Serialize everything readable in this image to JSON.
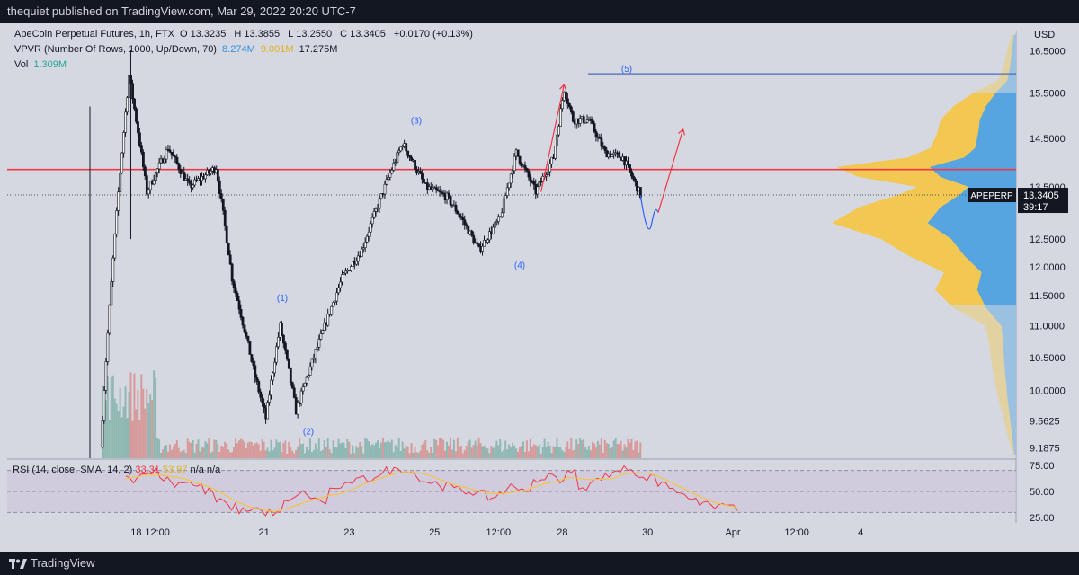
{
  "header": {
    "published_by": "thequiet published on TradingView.com, Mar 29, 2022 20:20 UTC-7"
  },
  "legend": {
    "symbol_line": "ApeCoin Perpetual Futures, 1h, FTX",
    "open_label": "O",
    "open": "13.3235",
    "high_label": "H",
    "high": "13.3855",
    "low_label": "L",
    "low": "13.2550",
    "close_label": "C",
    "close": "13.3405",
    "change": "+0.0170 (+0.13%)",
    "vpvr_label": "VPVR (Number Of Rows, 1000, Up/Down, 70)",
    "vpvr_up": "8.274M",
    "vpvr_down": "9.001M",
    "vpvr_total": "17.275M",
    "vol_label": "Vol",
    "vol_value": "1.309M"
  },
  "rsi_legend": {
    "label": "RSI (14, close, SMA, 14, 2)",
    "rsi_value": "33.31",
    "sma_value": "53.97",
    "na1": "n/a",
    "na2": "n/a"
  },
  "price_axis": {
    "currency": "USD",
    "ticks": [
      "16.5000",
      "15.5000",
      "14.5000",
      "13.5000",
      "12.5000",
      "12.0000",
      "11.5000",
      "11.0000",
      "10.5000",
      "10.0000",
      "9.5625",
      "9.1875"
    ],
    "last_symbol": "APEPERP",
    "last_price": "13.3405",
    "countdown": "39:17"
  },
  "rsi_axis": {
    "ticks": [
      "75.00",
      "50.00",
      "25.00"
    ]
  },
  "time_axis": {
    "ticks": [
      "18",
      "12:00",
      "21",
      "23",
      "25",
      "12:00",
      "28",
      "30",
      "Apr",
      "12:00",
      "4"
    ]
  },
  "wave_labels": [
    "(1)",
    "(2)",
    "(3)",
    "(4)",
    "(5)"
  ],
  "footer": {
    "brand": "TradingView"
  },
  "colors": {
    "background": "#d6d8e1",
    "candle": "#131722",
    "red_line": "#f23645",
    "wave_label": "#2962ff",
    "rsi_line": "#f23645",
    "rsi_sma": "#f5c542",
    "vp_up": "#4da3e8",
    "vp_down": "#f5c542",
    "volume_up": "#8fb8b2",
    "volume_down": "#d69a9a"
  },
  "chart_data": {
    "type": "candlestick",
    "instrument": "ApeCoin Perpetual Futures",
    "interval": "1h",
    "y_range": [
      9.05,
      17.0
    ],
    "scale": "log",
    "horizontal_levels": [
      {
        "name": "resistance",
        "price": 13.85,
        "color": "#f23645"
      },
      {
        "name": "wave-5-top",
        "price": 15.95,
        "color": "#4a6bb5"
      },
      {
        "name": "last-price",
        "price": 13.3405,
        "color": "#555"
      }
    ],
    "wave_points": [
      {
        "label": "(1)",
        "price": 11.2
      },
      {
        "label": "(2)",
        "price": 9.55
      },
      {
        "label": "(3)",
        "price": 14.55
      },
      {
        "label": "(4)",
        "price": 12.2
      },
      {
        "label": "(5)",
        "price": 15.7
      }
    ],
    "path_keypoints": [
      {
        "time": "Mar 17 04:00",
        "price": 9.2
      },
      {
        "time": "Mar 17 20:00",
        "price": 15.9
      },
      {
        "time": "Mar 18 06:00",
        "price": 13.4
      },
      {
        "time": "Mar 18 18:00",
        "price": 14.3
      },
      {
        "time": "Mar 19 06:00",
        "price": 13.5
      },
      {
        "time": "Mar 19 21:00",
        "price": 13.9
      },
      {
        "time": "Mar 20 06:00",
        "price": 11.8
      },
      {
        "time": "Mar 20 19:00",
        "price": 10.2
      },
      {
        "time": "Mar 21 01:00",
        "price": 9.6
      },
      {
        "time": "Mar 21 09:00",
        "price": 11.0
      },
      {
        "time": "Mar 21 18:00",
        "price": 9.7
      },
      {
        "time": "Mar 22 09:00",
        "price": 10.9
      },
      {
        "time": "Mar 22 20:00",
        "price": 11.8
      },
      {
        "time": "Mar 23 07:00",
        "price": 12.3
      },
      {
        "time": "Mar 23 20:00",
        "price": 13.5
      },
      {
        "time": "Mar 24 06:00",
        "price": 14.4
      },
      {
        "time": "Mar 24 19:00",
        "price": 13.5
      },
      {
        "time": "Mar 25 07:00",
        "price": 13.3
      },
      {
        "time": "Mar 25 15:00",
        "price": 12.9
      },
      {
        "time": "Mar 26 01:00",
        "price": 12.3
      },
      {
        "time": "Mar 26 13:00",
        "price": 12.9
      },
      {
        "time": "Mar 26 22:00",
        "price": 14.2
      },
      {
        "time": "Mar 27 09:00",
        "price": 13.4
      },
      {
        "time": "Mar 27 19:00",
        "price": 14.1
      },
      {
        "time": "Mar 28 01:00",
        "price": 15.6
      },
      {
        "time": "Mar 28 06:00",
        "price": 14.9
      },
      {
        "time": "Mar 28 15:00",
        "price": 14.9
      },
      {
        "time": "Mar 29 00:00",
        "price": 14.2
      },
      {
        "time": "Mar 29 10:00",
        "price": 14.1
      },
      {
        "time": "Mar 29 20:00",
        "price": 13.34
      }
    ],
    "forecast_path": [
      {
        "time": "Mar 29 20:00",
        "price": 13.34
      },
      {
        "time": "Mar 30 02:00",
        "price": 12.75
      },
      {
        "time": "Mar 30 06:00",
        "price": 13.0
      },
      {
        "time": "Mar 30 20:00",
        "price": 14.7
      }
    ],
    "rsi": {
      "y_range": [
        20,
        80
      ],
      "bands": [
        30,
        70
      ],
      "values": [
        62,
        66,
        70,
        63,
        58,
        60,
        55,
        50,
        40,
        35,
        32,
        34,
        30,
        28,
        40,
        48,
        45,
        40,
        52,
        55,
        60,
        62,
        66,
        70,
        72,
        68,
        60,
        58,
        55,
        52,
        50,
        47,
        44,
        50,
        55,
        52,
        58,
        65,
        62,
        68,
        55,
        60,
        64,
        70,
        72,
        66,
        62,
        58,
        52,
        45,
        40,
        38,
        35,
        34,
        33
      ]
    }
  }
}
